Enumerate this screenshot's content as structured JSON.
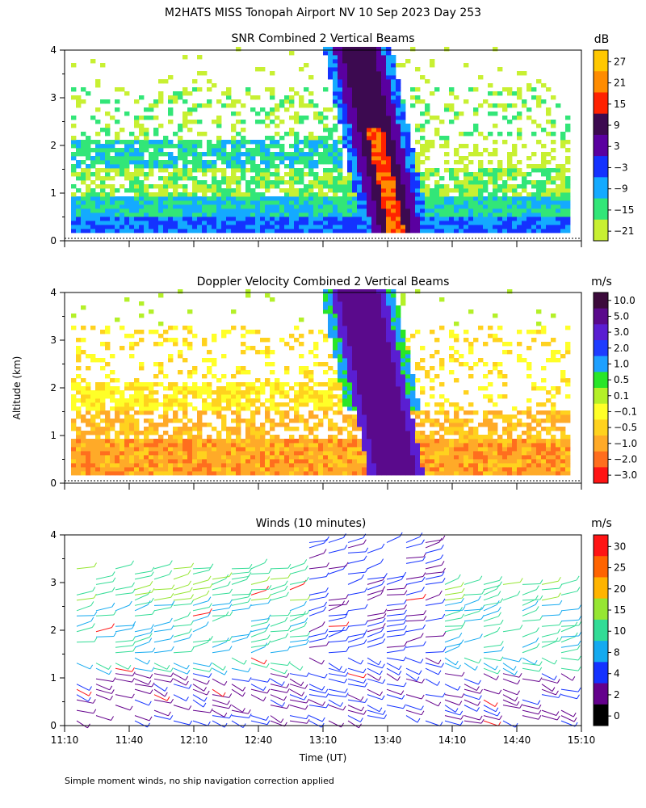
{
  "page": {
    "title": "M2HATS MISS Tonopah Airport NV  10 Sep 2023 Day 253",
    "ylabel": "Altitude (km)",
    "xlabel": "Time (UT)",
    "footnote": "Simple moment winds, no ship navigation correction applied"
  },
  "chart_data": [
    {
      "type": "heatmap",
      "title": "SNR Combined 2 Vertical Beams",
      "x_ticks": [
        "11:10",
        "11:40",
        "12:10",
        "12:40",
        "13:10",
        "13:40",
        "14:10",
        "14:40",
        "15:10"
      ],
      "y_ticks": [
        "0",
        "1",
        "2",
        "3",
        "4"
      ],
      "ylim": [
        0,
        4
      ],
      "colorbar": {
        "unit": "dB",
        "labels": [
          "27",
          "21",
          "15",
          "9",
          "3",
          "−3",
          "−9",
          "−15",
          "−21"
        ],
        "colors": [
          "#ffc800",
          "#ff8c00",
          "#ff2200",
          "#3c0a50",
          "#5a00a0",
          "#1432ff",
          "#14aaff",
          "#32e678",
          "#c8f032"
        ]
      }
    },
    {
      "type": "heatmap",
      "title": "Doppler Velocity Combined 2 Vertical Beams",
      "x_ticks": [
        "11:10",
        "11:40",
        "12:10",
        "12:40",
        "13:10",
        "13:40",
        "14:10",
        "14:40",
        "15:10"
      ],
      "y_ticks": [
        "0",
        "1",
        "2",
        "3",
        "4"
      ],
      "ylim": [
        0,
        4
      ],
      "colorbar": {
        "unit": "m/s",
        "labels": [
          "10.0",
          "5.0",
          "3.0",
          "2.0",
          "1.0",
          "0.5",
          "0.1",
          "−0.1",
          "−0.5",
          "−1.0",
          "−2.0",
          "−3.0"
        ],
        "colors": [
          "#3c0a3c",
          "#5a0a8c",
          "#5a1ed2",
          "#1e3cff",
          "#1ea0ff",
          "#28e628",
          "#b4f028",
          "#ffff28",
          "#ffd21e",
          "#ffaa28",
          "#ff6e1e",
          "#ff1414"
        ]
      }
    },
    {
      "type": "scatter",
      "title": "Winds (10 minutes)",
      "x_ticks": [
        "11:10",
        "11:40",
        "12:10",
        "12:40",
        "13:10",
        "13:40",
        "14:10",
        "14:40",
        "15:10"
      ],
      "y_ticks": [
        "0",
        "1",
        "2",
        "3",
        "4"
      ],
      "ylim": [
        0,
        4
      ],
      "colorbar": {
        "unit": "m/s",
        "labels": [
          "30",
          "25",
          "20",
          "15",
          "10",
          "8",
          "4",
          "2",
          "0"
        ],
        "colors": [
          "#ff1414",
          "#ff6400",
          "#ffb400",
          "#96e632",
          "#32dc96",
          "#14aaf0",
          "#1432ff",
          "#64008c",
          "#000000"
        ]
      }
    }
  ]
}
